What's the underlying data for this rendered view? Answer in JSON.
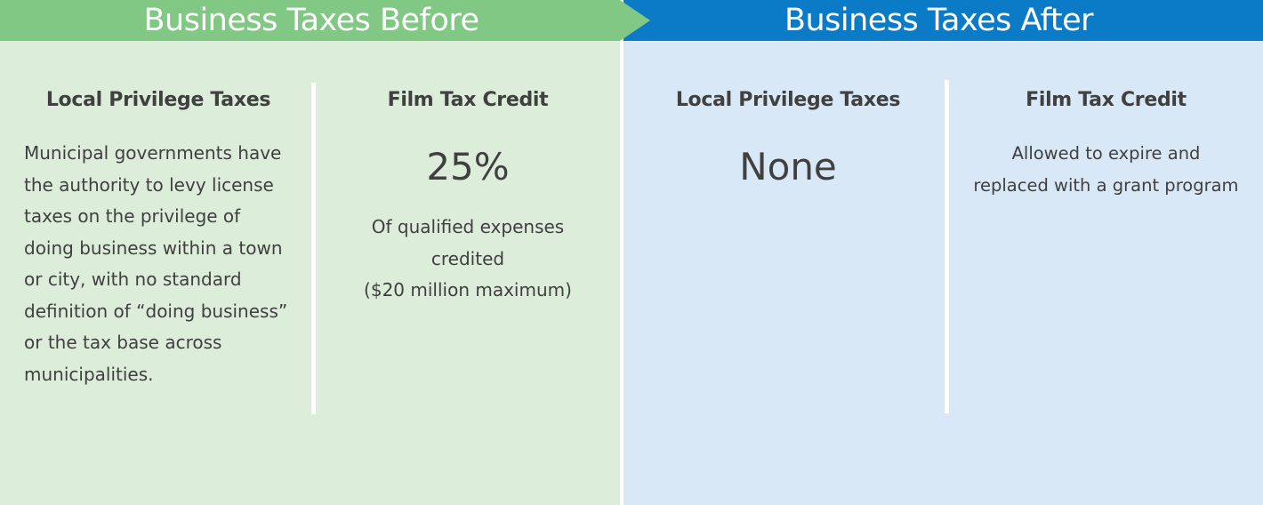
{
  "colors": {
    "before_header": "#80c883",
    "before_background": "#dcedda",
    "after_header": "#0b7bc7",
    "after_background": "#d8e8f7",
    "text": "#404040"
  },
  "before": {
    "header": "Business Taxes Before",
    "local_privilege": {
      "title": "Local Privilege Taxes",
      "lines": [
        "Municipal governments have",
        "the authority to levy license",
        "taxes on the privilege of",
        "doing business within a town",
        "or city, with no standard",
        "definition of “doing business”",
        "or the tax base across",
        "municipalities."
      ]
    },
    "film_credit": {
      "title": "Film Tax Credit",
      "value": "25%",
      "lines": [
        "Of qualified expenses",
        "credited",
        "($20 million maximum)"
      ]
    }
  },
  "after": {
    "header": "Business Taxes After",
    "local_privilege": {
      "title": "Local Privilege Taxes",
      "value": "None"
    },
    "film_credit": {
      "title": "Film Tax Credit",
      "lines": [
        "Allowed to expire and",
        "replaced with a grant program"
      ]
    }
  }
}
